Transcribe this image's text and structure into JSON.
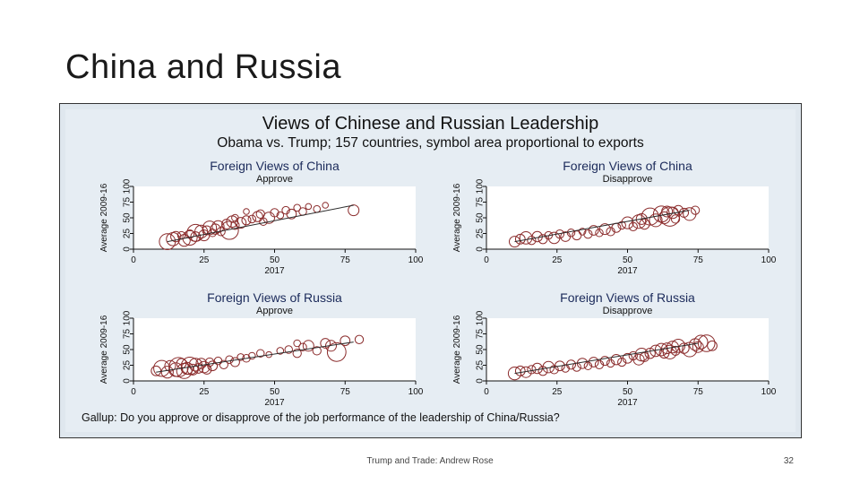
{
  "slide": {
    "title": "China and Russia",
    "footer": "Trump and Trade: Andrew Rose",
    "page_number": "32"
  },
  "figure": {
    "title": "Views of Chinese and Russian Leadership",
    "subtitle": "Obama vs. Trump; 157 countries, symbol area proportional to exports",
    "note": "Gallup: Do you approve or disapprove of the job performance of the leadership of China/Russia?",
    "marker_color": "#8b2c2c",
    "line_color": "#2b2b2b",
    "plot_bg": "#ffffff"
  },
  "chart_data": [
    {
      "type": "scatter",
      "title": "Foreign Views of China",
      "subtitle": "Approve",
      "xlabel": "2017",
      "ylabel": "Average 2009-16",
      "xlim": [
        0,
        100
      ],
      "ylim": [
        0,
        100
      ],
      "xticks": [
        0,
        25,
        50,
        75,
        100
      ],
      "yticks": [
        0,
        25,
        50,
        75,
        100
      ],
      "fit_line": [
        [
          12,
          12
        ],
        [
          78,
          70
        ]
      ],
      "points": [
        [
          12,
          12,
          2.2
        ],
        [
          14,
          16,
          1.5
        ],
        [
          15,
          20,
          0.9
        ],
        [
          17,
          22,
          0.5
        ],
        [
          18,
          14,
          1.2
        ],
        [
          20,
          18,
          1.8
        ],
        [
          20,
          24,
          0.6
        ],
        [
          22,
          20,
          0.8
        ],
        [
          22,
          26,
          2.5
        ],
        [
          24,
          28,
          1.4
        ],
        [
          25,
          22,
          1.0
        ],
        [
          26,
          30,
          0.7
        ],
        [
          27,
          34,
          1.6
        ],
        [
          28,
          26,
          0.5
        ],
        [
          29,
          32,
          0.9
        ],
        [
          30,
          36,
          1.2
        ],
        [
          31,
          28,
          0.6
        ],
        [
          33,
          40,
          0.8
        ],
        [
          34,
          30,
          2.8
        ],
        [
          35,
          44,
          1.1
        ],
        [
          36,
          38,
          0.6
        ],
        [
          38,
          42,
          1.0
        ],
        [
          40,
          46,
          0.7
        ],
        [
          42,
          48,
          0.5
        ],
        [
          44,
          52,
          0.9
        ],
        [
          45,
          56,
          0.6
        ],
        [
          46,
          44,
          0.5
        ],
        [
          48,
          50,
          1.1
        ],
        [
          50,
          58,
          0.6
        ],
        [
          52,
          54,
          0.4
        ],
        [
          54,
          62,
          0.5
        ],
        [
          56,
          56,
          0.8
        ],
        [
          58,
          66,
          0.4
        ],
        [
          60,
          60,
          0.5
        ],
        [
          62,
          68,
          0.3
        ],
        [
          65,
          64,
          0.4
        ],
        [
          68,
          70,
          0.3
        ],
        [
          78,
          62,
          1.0
        ],
        [
          36,
          50,
          0.4
        ],
        [
          40,
          60,
          0.3
        ]
      ]
    },
    {
      "type": "scatter",
      "title": "Foreign Views of China",
      "subtitle": "Disapprove",
      "xlabel": "2017",
      "ylabel": "Average 2009-16",
      "xlim": [
        0,
        100
      ],
      "ylim": [
        0,
        100
      ],
      "xticks": [
        0,
        25,
        50,
        75,
        100
      ],
      "yticks": [
        0,
        25,
        50,
        75,
        100
      ],
      "fit_line": [
        [
          10,
          12
        ],
        [
          72,
          62
        ]
      ],
      "points": [
        [
          10,
          12,
          1.0
        ],
        [
          12,
          16,
          0.8
        ],
        [
          14,
          18,
          1.3
        ],
        [
          16,
          14,
          0.6
        ],
        [
          18,
          20,
          0.9
        ],
        [
          20,
          16,
          0.7
        ],
        [
          22,
          22,
          0.5
        ],
        [
          24,
          18,
          1.1
        ],
        [
          26,
          24,
          0.6
        ],
        [
          28,
          20,
          0.8
        ],
        [
          30,
          26,
          0.5
        ],
        [
          32,
          22,
          0.7
        ],
        [
          34,
          28,
          0.4
        ],
        [
          36,
          24,
          0.6
        ],
        [
          38,
          30,
          0.8
        ],
        [
          40,
          26,
          0.5
        ],
        [
          42,
          32,
          1.0
        ],
        [
          44,
          28,
          0.6
        ],
        [
          46,
          34,
          0.7
        ],
        [
          48,
          38,
          0.5
        ],
        [
          50,
          42,
          1.2
        ],
        [
          52,
          36,
          0.6
        ],
        [
          54,
          44,
          1.6
        ],
        [
          55,
          48,
          1.0
        ],
        [
          56,
          40,
          0.9
        ],
        [
          58,
          52,
          2.5
        ],
        [
          60,
          46,
          1.4
        ],
        [
          62,
          56,
          2.2
        ],
        [
          63,
          50,
          1.2
        ],
        [
          64,
          60,
          1.0
        ],
        [
          65,
          52,
          3.2
        ],
        [
          66,
          58,
          1.1
        ],
        [
          67,
          48,
          0.6
        ],
        [
          68,
          62,
          0.8
        ],
        [
          70,
          58,
          0.7
        ],
        [
          72,
          56,
          1.4
        ],
        [
          74,
          62,
          0.6
        ]
      ]
    },
    {
      "type": "scatter",
      "title": "Foreign Views of Russia",
      "subtitle": "Approve",
      "xlabel": "2017",
      "ylabel": "Average 2009-16",
      "xlim": [
        0,
        100
      ],
      "ylim": [
        0,
        100
      ],
      "xticks": [
        0,
        25,
        50,
        75,
        100
      ],
      "yticks": [
        0,
        25,
        50,
        75,
        100
      ],
      "fit_line": [
        [
          8,
          14
        ],
        [
          78,
          62
        ]
      ],
      "points": [
        [
          8,
          16,
          0.8
        ],
        [
          10,
          20,
          2.2
        ],
        [
          12,
          14,
          1.2
        ],
        [
          13,
          24,
          1.0
        ],
        [
          15,
          18,
          1.6
        ],
        [
          16,
          22,
          3.2
        ],
        [
          17,
          28,
          0.8
        ],
        [
          18,
          16,
          2.0
        ],
        [
          19,
          20,
          1.2
        ],
        [
          20,
          24,
          2.6
        ],
        [
          21,
          18,
          1.0
        ],
        [
          22,
          26,
          1.4
        ],
        [
          23,
          20,
          0.8
        ],
        [
          24,
          28,
          0.9
        ],
        [
          25,
          22,
          1.1
        ],
        [
          26,
          18,
          0.7
        ],
        [
          27,
          30,
          0.6
        ],
        [
          28,
          24,
          0.8
        ],
        [
          30,
          32,
          0.5
        ],
        [
          32,
          26,
          0.6
        ],
        [
          34,
          34,
          0.5
        ],
        [
          36,
          30,
          0.7
        ],
        [
          38,
          38,
          0.4
        ],
        [
          40,
          36,
          0.5
        ],
        [
          42,
          40,
          0.4
        ],
        [
          45,
          44,
          0.5
        ],
        [
          48,
          42,
          0.3
        ],
        [
          52,
          48,
          0.4
        ],
        [
          55,
          50,
          0.5
        ],
        [
          58,
          44,
          0.6
        ],
        [
          60,
          54,
          0.5
        ],
        [
          62,
          56,
          1.0
        ],
        [
          65,
          48,
          0.6
        ],
        [
          68,
          60,
          0.8
        ],
        [
          70,
          56,
          1.0
        ],
        [
          72,
          46,
          3.0
        ],
        [
          75,
          64,
          0.8
        ],
        [
          80,
          66,
          0.6
        ],
        [
          58,
          60,
          0.4
        ]
      ]
    },
    {
      "type": "scatter",
      "title": "Foreign Views of Russia",
      "subtitle": "Disapprove",
      "xlabel": "2017",
      "ylabel": "Average 2009-16",
      "xlim": [
        0,
        100
      ],
      "ylim": [
        0,
        100
      ],
      "xticks": [
        0,
        25,
        50,
        75,
        100
      ],
      "yticks": [
        0,
        25,
        50,
        75,
        100
      ],
      "fit_line": [
        [
          10,
          12
        ],
        [
          75,
          60
        ]
      ],
      "points": [
        [
          10,
          12,
          1.4
        ],
        [
          12,
          16,
          0.8
        ],
        [
          14,
          14,
          1.0
        ],
        [
          16,
          18,
          0.6
        ],
        [
          18,
          20,
          0.9
        ],
        [
          20,
          16,
          0.7
        ],
        [
          22,
          22,
          1.1
        ],
        [
          24,
          18,
          0.6
        ],
        [
          26,
          24,
          0.8
        ],
        [
          28,
          20,
          0.5
        ],
        [
          30,
          26,
          0.7
        ],
        [
          32,
          22,
          0.6
        ],
        [
          34,
          28,
          0.9
        ],
        [
          36,
          24,
          0.5
        ],
        [
          38,
          30,
          0.8
        ],
        [
          40,
          26,
          0.6
        ],
        [
          42,
          32,
          0.7
        ],
        [
          44,
          28,
          0.5
        ],
        [
          46,
          34,
          0.9
        ],
        [
          48,
          30,
          0.6
        ],
        [
          50,
          36,
          0.8
        ],
        [
          52,
          40,
          0.6
        ],
        [
          54,
          34,
          1.0
        ],
        [
          55,
          42,
          1.4
        ],
        [
          56,
          38,
          0.7
        ],
        [
          58,
          44,
          0.9
        ],
        [
          60,
          48,
          1.1
        ],
        [
          62,
          50,
          1.3
        ],
        [
          63,
          44,
          0.8
        ],
        [
          64,
          52,
          1.0
        ],
        [
          65,
          46,
          1.6
        ],
        [
          66,
          54,
          1.2
        ],
        [
          67,
          48,
          0.7
        ],
        [
          68,
          56,
          1.5
        ],
        [
          70,
          52,
          0.9
        ],
        [
          72,
          50,
          1.8
        ],
        [
          74,
          58,
          1.2
        ],
        [
          75,
          54,
          1.0
        ],
        [
          76,
          62,
          1.6
        ],
        [
          78,
          60,
          2.4
        ],
        [
          80,
          56,
          0.8
        ]
      ]
    }
  ]
}
